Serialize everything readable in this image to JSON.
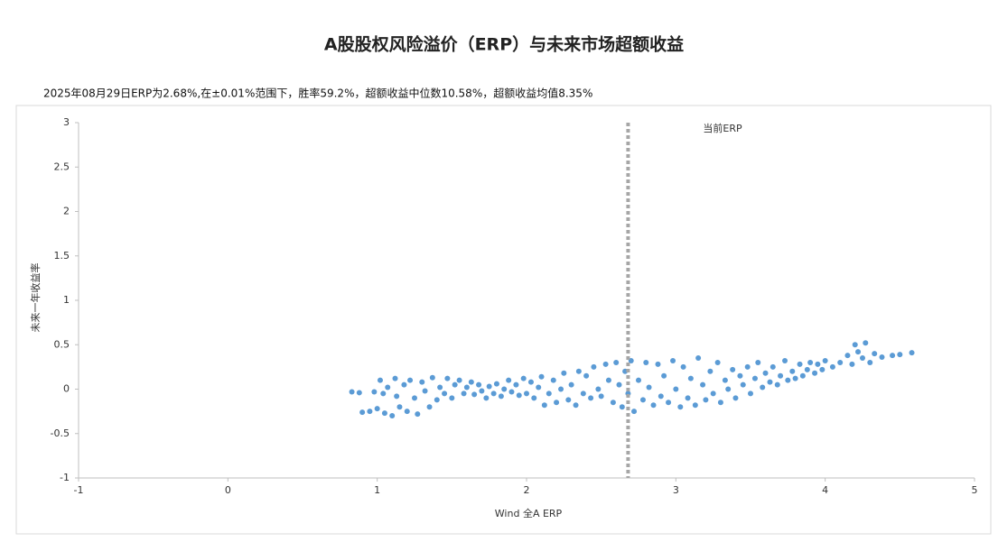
{
  "chart_data": {
    "type": "scatter",
    "title": "A股股权风险溢价（ERP）与未来市场超额收益",
    "subtitle": "2025年08月29日ERP为2.68%,在±0.01%范围下，胜率59.2%，超额收益中位数10.58%，超额收益均值8.35%",
    "xlabel": "Wind 全A ERP",
    "ylabel": "未来一年收益率",
    "annotation": {
      "text": "当前ERP",
      "x": 2.68
    },
    "color": "#5b9bd5",
    "xlim": [
      -1,
      5
    ],
    "xticks": [
      -1,
      0,
      1,
      2,
      3,
      4,
      5
    ],
    "ylim": [
      -1,
      3
    ],
    "yticks": [
      -1,
      -0.5,
      0,
      0.5,
      1,
      1.5,
      2,
      2.5,
      3
    ],
    "x": [
      0.83,
      0.88,
      0.9,
      0.95,
      0.98,
      1.0,
      1.02,
      1.04,
      1.05,
      1.07,
      1.1,
      1.12,
      1.13,
      1.15,
      1.18,
      1.2,
      1.22,
      1.25,
      1.27,
      1.3,
      1.32,
      1.35,
      1.37,
      1.4,
      1.42,
      1.45,
      1.47,
      1.5,
      1.52,
      1.55,
      1.58,
      1.6,
      1.63,
      1.65,
      1.68,
      1.7,
      1.73,
      1.75,
      1.78,
      1.8,
      1.83,
      1.85,
      1.88,
      1.9,
      1.93,
      1.95,
      1.98,
      2.0,
      2.03,
      2.05,
      2.08,
      2.1,
      2.12,
      2.15,
      2.18,
      2.2,
      2.23,
      2.25,
      2.28,
      2.3,
      2.33,
      2.35,
      2.38,
      2.4,
      2.43,
      2.45,
      2.48,
      2.5,
      2.53,
      2.55,
      2.58,
      2.6,
      2.62,
      2.64,
      2.66,
      2.68,
      2.7,
      2.72,
      2.75,
      2.78,
      2.8,
      2.82,
      2.85,
      2.88,
      2.9,
      2.92,
      2.95,
      2.98,
      3.0,
      3.03,
      3.05,
      3.08,
      3.1,
      3.13,
      3.15,
      3.18,
      3.2,
      3.23,
      3.25,
      3.28,
      3.3,
      3.33,
      3.35,
      3.38,
      3.4,
      3.43,
      3.45,
      3.48,
      3.5,
      3.53,
      3.55,
      3.58,
      3.6,
      3.63,
      3.65,
      3.68,
      3.7,
      3.73,
      3.75,
      3.78,
      3.8,
      3.83,
      3.85,
      3.88,
      3.9,
      3.93,
      3.95,
      3.98,
      4.0,
      4.05,
      4.1,
      4.15,
      4.18,
      4.2,
      4.22,
      4.25,
      4.27,
      4.3,
      4.33,
      4.38,
      4.45,
      4.5,
      4.58
    ],
    "values": [
      -0.03,
      -0.04,
      -0.26,
      -0.25,
      -0.03,
      -0.22,
      0.1,
      -0.05,
      -0.27,
      0.02,
      -0.3,
      0.12,
      -0.08,
      -0.2,
      0.05,
      -0.25,
      0.1,
      -0.1,
      -0.28,
      0.08,
      -0.02,
      -0.2,
      0.13,
      -0.12,
      0.02,
      -0.05,
      0.12,
      -0.1,
      0.05,
      0.1,
      -0.05,
      0.02,
      0.08,
      -0.06,
      0.05,
      -0.02,
      -0.1,
      0.03,
      -0.05,
      0.06,
      -0.08,
      0.0,
      0.1,
      -0.03,
      0.05,
      -0.07,
      0.12,
      -0.05,
      0.08,
      -0.1,
      0.02,
      0.14,
      -0.18,
      -0.05,
      0.1,
      -0.15,
      0.0,
      0.18,
      -0.12,
      0.05,
      -0.18,
      0.2,
      -0.05,
      0.15,
      -0.1,
      0.25,
      0.0,
      -0.08,
      0.28,
      0.1,
      -0.15,
      0.3,
      0.05,
      -0.2,
      0.2,
      -0.05,
      0.32,
      -0.25,
      0.1,
      -0.12,
      0.3,
      0.02,
      -0.18,
      0.28,
      -0.08,
      0.15,
      -0.15,
      0.32,
      0.0,
      -0.2,
      0.25,
      -0.1,
      0.12,
      -0.18,
      0.35,
      0.05,
      -0.12,
      0.2,
      -0.05,
      0.3,
      -0.15,
      0.1,
      0.0,
      0.22,
      -0.1,
      0.15,
      0.05,
      0.25,
      -0.05,
      0.12,
      0.3,
      0.02,
      0.18,
      0.08,
      0.25,
      0.05,
      0.15,
      0.32,
      0.1,
      0.2,
      0.12,
      0.28,
      0.15,
      0.22,
      0.3,
      0.18,
      0.28,
      0.22,
      0.32,
      0.25,
      0.3,
      0.38,
      0.28,
      0.5,
      0.42,
      0.35,
      0.52,
      0.3,
      0.4,
      0.36,
      0.38,
      0.39,
      0.41
    ]
  }
}
